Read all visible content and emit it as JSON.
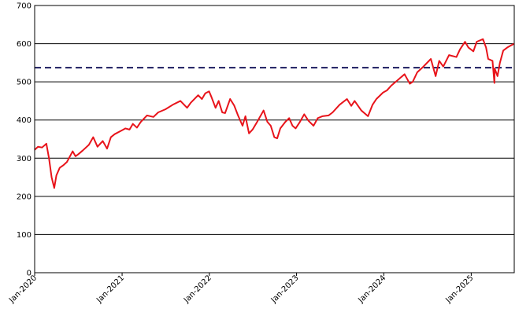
{
  "chart_data": {
    "type": "line",
    "title": "",
    "xlabel": "",
    "ylabel": "",
    "ylim": [
      0,
      700
    ],
    "yticks": [
      0,
      100,
      200,
      300,
      400,
      500,
      600,
      700
    ],
    "xlim": [
      "2020-01-01",
      "2025-06-30"
    ],
    "xticks": [
      {
        "date": "2020-01-01",
        "label": "Jan-2020"
      },
      {
        "date": "2021-01-01",
        "label": "Jan-2021"
      },
      {
        "date": "2022-01-01",
        "label": "Jan-2022"
      },
      {
        "date": "2023-01-01",
        "label": "Jan-2023"
      },
      {
        "date": "2024-01-01",
        "label": "Jan-2024"
      },
      {
        "date": "2025-01-01",
        "label": "Jan-2025"
      }
    ],
    "grid": {
      "horizontal": true,
      "vertical": false
    },
    "legend": "none",
    "reference_line": {
      "y": 537,
      "style": "dashed",
      "color": "#1a1a5e"
    },
    "series": [
      {
        "color": "#e8141b",
        "points": [
          [
            "2020-01-01",
            322
          ],
          [
            "2020-01-15",
            330
          ],
          [
            "2020-02-01",
            328
          ],
          [
            "2020-02-19",
            338
          ],
          [
            "2020-03-01",
            300
          ],
          [
            "2020-03-12",
            250
          ],
          [
            "2020-03-23",
            222
          ],
          [
            "2020-04-01",
            255
          ],
          [
            "2020-04-15",
            275
          ],
          [
            "2020-05-01",
            282
          ],
          [
            "2020-05-15",
            290
          ],
          [
            "2020-06-08",
            318
          ],
          [
            "2020-06-20",
            305
          ],
          [
            "2020-07-01",
            310
          ],
          [
            "2020-07-20",
            320
          ],
          [
            "2020-08-15",
            335
          ],
          [
            "2020-09-02",
            355
          ],
          [
            "2020-09-20",
            330
          ],
          [
            "2020-10-12",
            345
          ],
          [
            "2020-10-30",
            325
          ],
          [
            "2020-11-15",
            355
          ],
          [
            "2020-12-01",
            363
          ],
          [
            "2020-12-31",
            373
          ],
          [
            "2021-01-15",
            378
          ],
          [
            "2021-02-01",
            375
          ],
          [
            "2021-02-15",
            390
          ],
          [
            "2021-03-04",
            380
          ],
          [
            "2021-03-20",
            395
          ],
          [
            "2021-04-15",
            412
          ],
          [
            "2021-05-12",
            408
          ],
          [
            "2021-06-01",
            420
          ],
          [
            "2021-07-01",
            428
          ],
          [
            "2021-08-01",
            440
          ],
          [
            "2021-09-02",
            450
          ],
          [
            "2021-09-30",
            432
          ],
          [
            "2021-10-15",
            445
          ],
          [
            "2021-11-15",
            465
          ],
          [
            "2021-12-01",
            455
          ],
          [
            "2021-12-15",
            470
          ],
          [
            "2021-12-31",
            475
          ],
          [
            "2022-01-10",
            460
          ],
          [
            "2022-01-27",
            432
          ],
          [
            "2022-02-09",
            450
          ],
          [
            "2022-02-24",
            420
          ],
          [
            "2022-03-08",
            418
          ],
          [
            "2022-03-29",
            455
          ],
          [
            "2022-04-15",
            438
          ],
          [
            "2022-05-01",
            412
          ],
          [
            "2022-05-20",
            385
          ],
          [
            "2022-06-01",
            410
          ],
          [
            "2022-06-16",
            365
          ],
          [
            "2022-07-01",
            375
          ],
          [
            "2022-07-20",
            395
          ],
          [
            "2022-08-16",
            425
          ],
          [
            "2022-09-01",
            395
          ],
          [
            "2022-09-15",
            385
          ],
          [
            "2022-09-30",
            355
          ],
          [
            "2022-10-12",
            352
          ],
          [
            "2022-10-25",
            378
          ],
          [
            "2022-11-15",
            395
          ],
          [
            "2022-12-01",
            405
          ],
          [
            "2022-12-15",
            385
          ],
          [
            "2022-12-28",
            378
          ],
          [
            "2023-01-15",
            395
          ],
          [
            "2023-02-02",
            415
          ],
          [
            "2023-02-20",
            398
          ],
          [
            "2023-03-13",
            385
          ],
          [
            "2023-03-31",
            405
          ],
          [
            "2023-04-20",
            410
          ],
          [
            "2023-05-15",
            412
          ],
          [
            "2023-06-01",
            420
          ],
          [
            "2023-06-30",
            440
          ],
          [
            "2023-07-31",
            455
          ],
          [
            "2023-08-18",
            437
          ],
          [
            "2023-09-01",
            450
          ],
          [
            "2023-09-29",
            425
          ],
          [
            "2023-10-27",
            410
          ],
          [
            "2023-11-15",
            440
          ],
          [
            "2023-12-01",
            455
          ],
          [
            "2023-12-29",
            472
          ],
          [
            "2024-01-15",
            478
          ],
          [
            "2024-02-01",
            490
          ],
          [
            "2024-02-29",
            505
          ],
          [
            "2024-03-28",
            520
          ],
          [
            "2024-04-19",
            495
          ],
          [
            "2024-05-01",
            500
          ],
          [
            "2024-05-20",
            525
          ],
          [
            "2024-06-15",
            540
          ],
          [
            "2024-07-16",
            560
          ],
          [
            "2024-08-05",
            515
          ],
          [
            "2024-08-20",
            555
          ],
          [
            "2024-09-06",
            540
          ],
          [
            "2024-09-30",
            570
          ],
          [
            "2024-10-31",
            565
          ],
          [
            "2024-11-15",
            585
          ],
          [
            "2024-12-06",
            605
          ],
          [
            "2024-12-20",
            590
          ],
          [
            "2025-01-10",
            580
          ],
          [
            "2025-01-24",
            605
          ],
          [
            "2025-02-19",
            612
          ],
          [
            "2025-03-04",
            590
          ],
          [
            "2025-03-13",
            560
          ],
          [
            "2025-03-31",
            555
          ],
          [
            "2025-04-08",
            497
          ],
          [
            "2025-04-09",
            535
          ],
          [
            "2025-04-21",
            515
          ],
          [
            "2025-05-01",
            550
          ],
          [
            "2025-05-15",
            582
          ],
          [
            "2025-06-01",
            590
          ],
          [
            "2025-06-15",
            595
          ],
          [
            "2025-06-30",
            600
          ]
        ]
      }
    ]
  }
}
